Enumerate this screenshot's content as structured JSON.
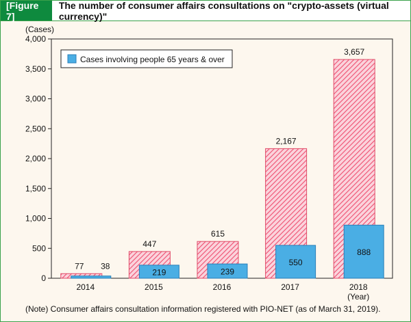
{
  "figure": {
    "label": "[Figure 7]",
    "title": "The number of consumer affairs consultations on \"crypto-assets (virtual currency)\"",
    "note": "(Note) Consumer affairs consultation information registered with PIO-NET (as of March 31, 2019)."
  },
  "chart_data": {
    "type": "bar",
    "categories": [
      "2014",
      "2015",
      "2016",
      "2017",
      "2018"
    ],
    "series": [
      {
        "name": "",
        "values": [
          77,
          447,
          615,
          2167,
          3657
        ],
        "labels": [
          "77",
          "447",
          "615",
          "2,167",
          "3,657"
        ],
        "color": "#f05a78",
        "pattern": "hatched"
      },
      {
        "name": "Cases involving people 65 years & over",
        "values": [
          38,
          219,
          239,
          550,
          888
        ],
        "labels": [
          "38",
          "219",
          "239",
          "550",
          "888"
        ],
        "color": "#4aaee4"
      }
    ],
    "y_axis_unit": "(Cases)",
    "x_axis_unit": "(Year)",
    "ylim": [
      0,
      4000
    ],
    "yticks": [
      0,
      500,
      1000,
      1500,
      2000,
      2500,
      3000,
      3500,
      4000
    ],
    "ytick_labels": [
      "0",
      "500",
      "1,000",
      "1,500",
      "2,000",
      "2,500",
      "3,000",
      "3,500",
      "4,000"
    ],
    "legend_position": "top-left",
    "grid": false
  }
}
